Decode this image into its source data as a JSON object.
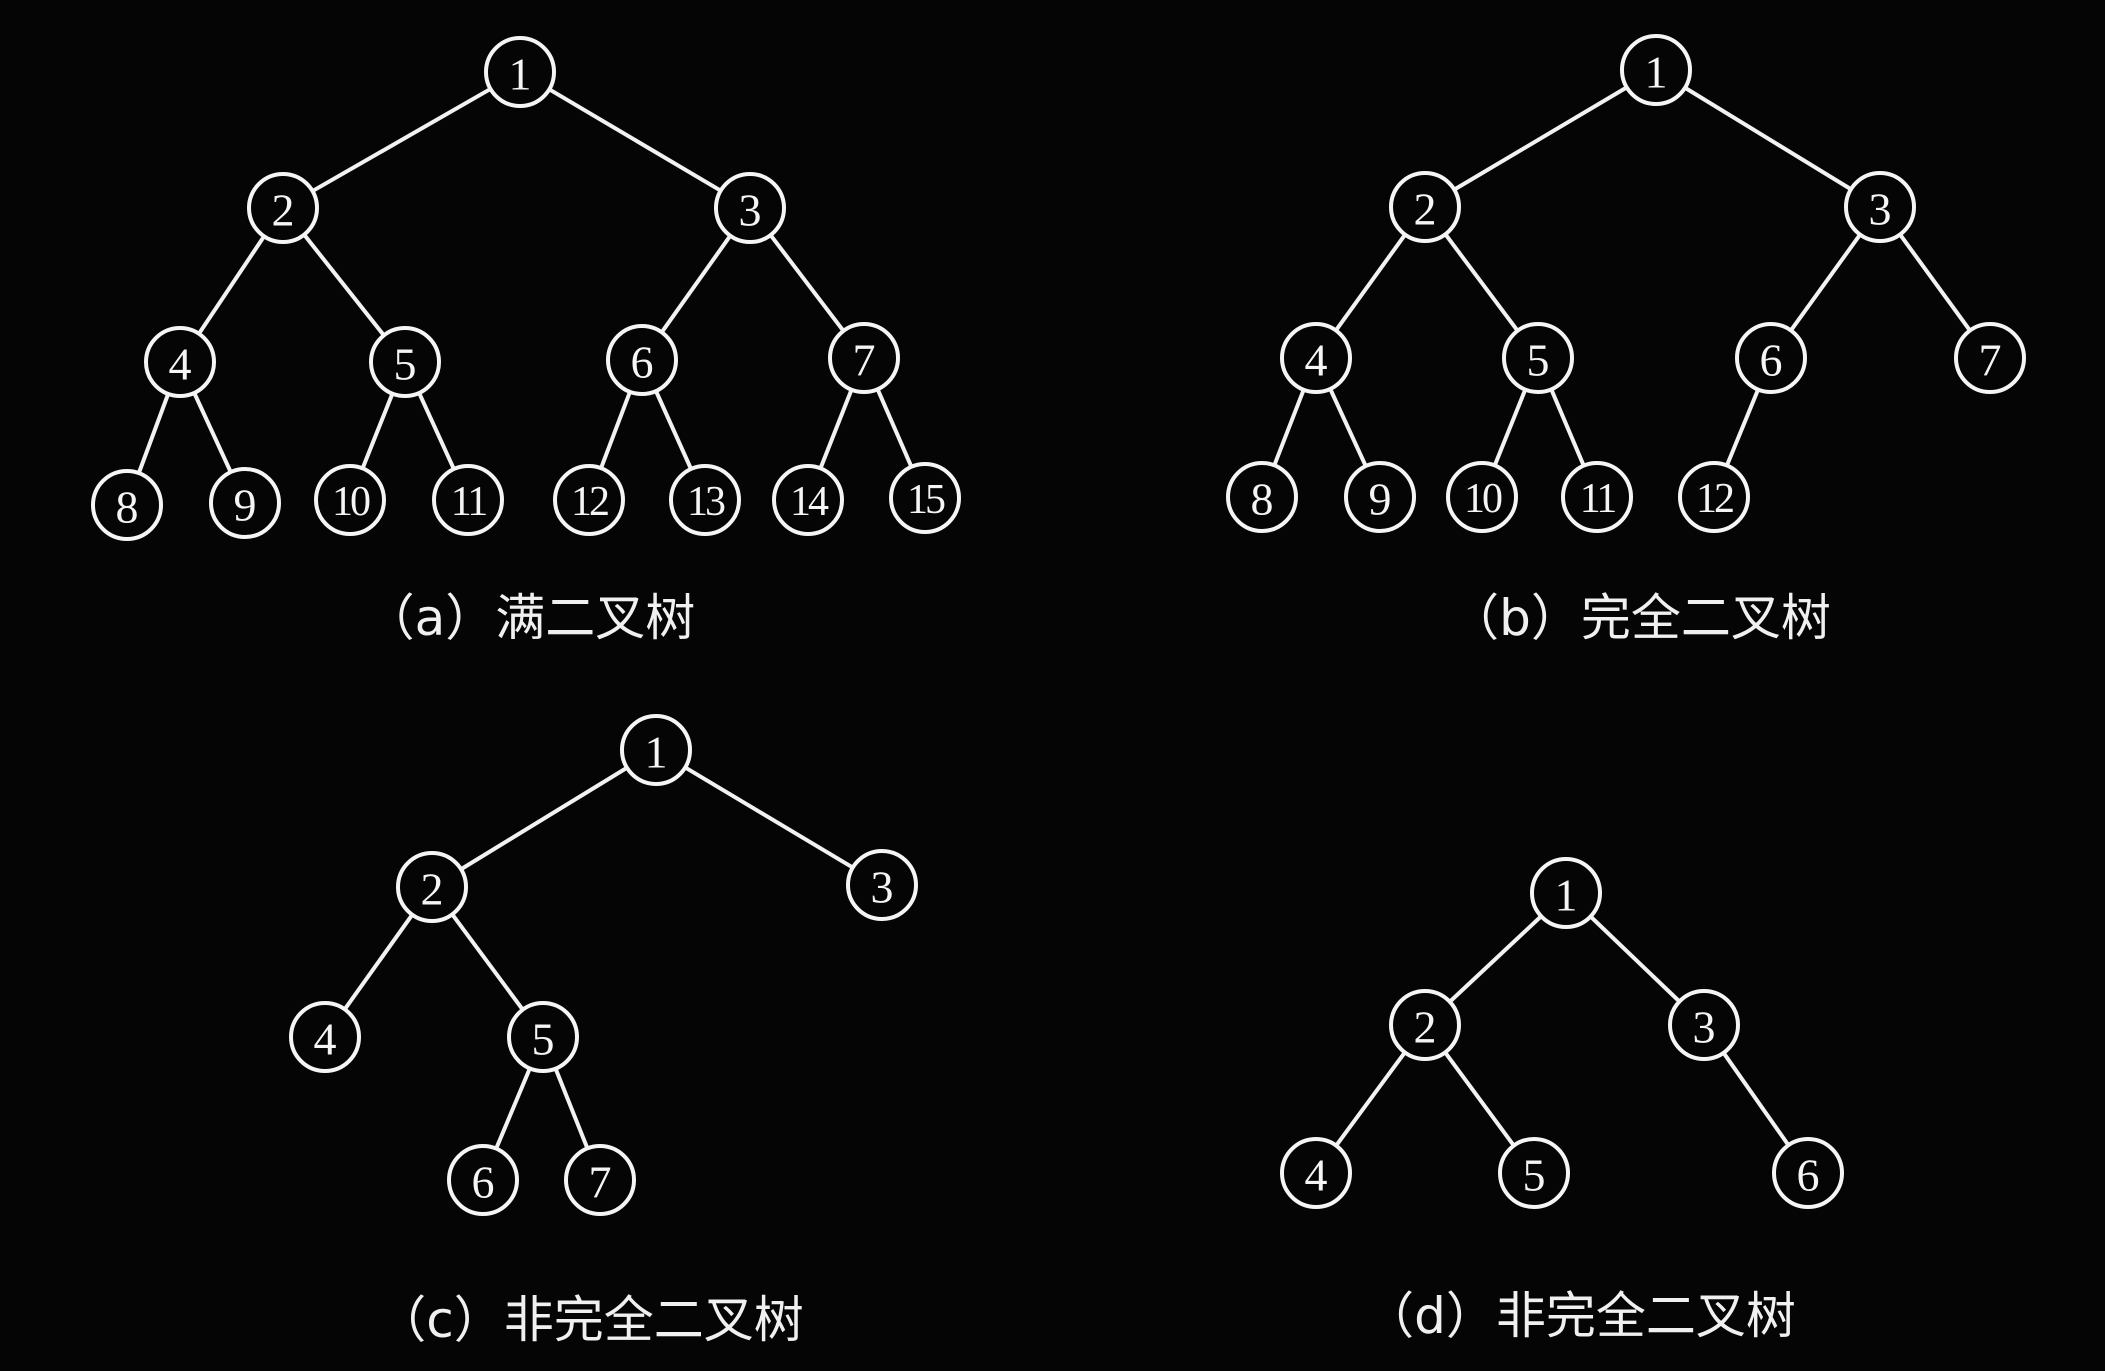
{
  "colors": {
    "background": "#050505",
    "line": "#f2f2f2",
    "text": "#f5f5f5"
  },
  "trees": [
    {
      "id": "a",
      "caption": "（a）满二叉树",
      "nodes": [
        "1",
        "2",
        "3",
        "4",
        "5",
        "6",
        "7",
        "8",
        "9",
        "10",
        "11",
        "12",
        "13",
        "14",
        "15"
      ],
      "edges": [
        [
          "1",
          "2"
        ],
        [
          "1",
          "3"
        ],
        [
          "2",
          "4"
        ],
        [
          "2",
          "5"
        ],
        [
          "3",
          "6"
        ],
        [
          "3",
          "7"
        ],
        [
          "4",
          "8"
        ],
        [
          "4",
          "9"
        ],
        [
          "5",
          "10"
        ],
        [
          "5",
          "11"
        ],
        [
          "6",
          "12"
        ],
        [
          "6",
          "13"
        ],
        [
          "7",
          "14"
        ],
        [
          "7",
          "15"
        ]
      ]
    },
    {
      "id": "b",
      "caption": "（b）完全二叉树",
      "nodes": [
        "1",
        "2",
        "3",
        "4",
        "5",
        "6",
        "7",
        "8",
        "9",
        "10",
        "11",
        "12"
      ],
      "edges": [
        [
          "1",
          "2"
        ],
        [
          "1",
          "3"
        ],
        [
          "2",
          "4"
        ],
        [
          "2",
          "5"
        ],
        [
          "3",
          "6"
        ],
        [
          "3",
          "7"
        ],
        [
          "4",
          "8"
        ],
        [
          "4",
          "9"
        ],
        [
          "5",
          "10"
        ],
        [
          "5",
          "11"
        ],
        [
          "6",
          "12"
        ]
      ]
    },
    {
      "id": "c",
      "caption": "（c）非完全二叉树",
      "nodes": [
        "1",
        "2",
        "3",
        "4",
        "5",
        "6",
        "7"
      ],
      "edges": [
        [
          "1",
          "2"
        ],
        [
          "1",
          "3"
        ],
        [
          "2",
          "4"
        ],
        [
          "2",
          "5"
        ],
        [
          "5",
          "6"
        ],
        [
          "5",
          "7"
        ]
      ]
    },
    {
      "id": "d",
      "caption": "（d）非完全二叉树",
      "nodes": [
        "1",
        "2",
        "3",
        "4",
        "5",
        "6"
      ],
      "edges": [
        [
          "1",
          "2"
        ],
        [
          "1",
          "3"
        ],
        [
          "2",
          "4"
        ],
        [
          "2",
          "5"
        ],
        [
          "3",
          "6"
        ]
      ]
    }
  ]
}
